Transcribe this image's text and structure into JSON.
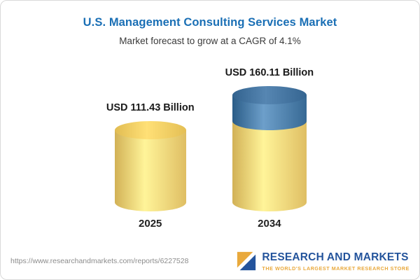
{
  "chart_data": {
    "type": "bar",
    "subtype": "3d-cylinder",
    "title": "U.S. Management Consulting Services Market",
    "subtitle": "Market forecast to grow at a CAGR of 4.1%",
    "cagr_percent": 4.1,
    "unit": "USD Billion",
    "categories": [
      "2025",
      "2034"
    ],
    "values": [
      111.43,
      160.11
    ],
    "value_labels": [
      "USD 111.43 Billion",
      "USD 160.11 Billion"
    ],
    "axes_visible": false,
    "grid": false,
    "legend": "none",
    "bars": [
      {
        "category": "2025",
        "value": 111.43,
        "label": "USD 111.43 Billion",
        "segments": [
          {
            "value": 111.43,
            "color": "#f6d57a",
            "cap_color": "#eec95f"
          }
        ]
      },
      {
        "category": "2034",
        "value": 160.11,
        "label": "USD 160.11 Billion",
        "segments": [
          {
            "value": 111.43,
            "color": "#f6d57a",
            "cap_color": "#eec95f"
          },
          {
            "value": 48.68,
            "color": "#4e80ab",
            "cap_color": "#3f6f9b"
          }
        ]
      }
    ]
  },
  "footer": {
    "url": "https://www.researchandmarkets.com/reports/6227528",
    "logo_text": "RESEARCH AND MARKETS",
    "logo_tagline": "THE WORLD'S LARGEST MARKET RESEARCH STORE"
  },
  "colors": {
    "title_blue": "#1a6fb5",
    "bar_yellow": "#f6d57a",
    "bar_blue": "#4e80ab",
    "logo_navy": "#24549c",
    "logo_gold": "#e9a93c"
  }
}
